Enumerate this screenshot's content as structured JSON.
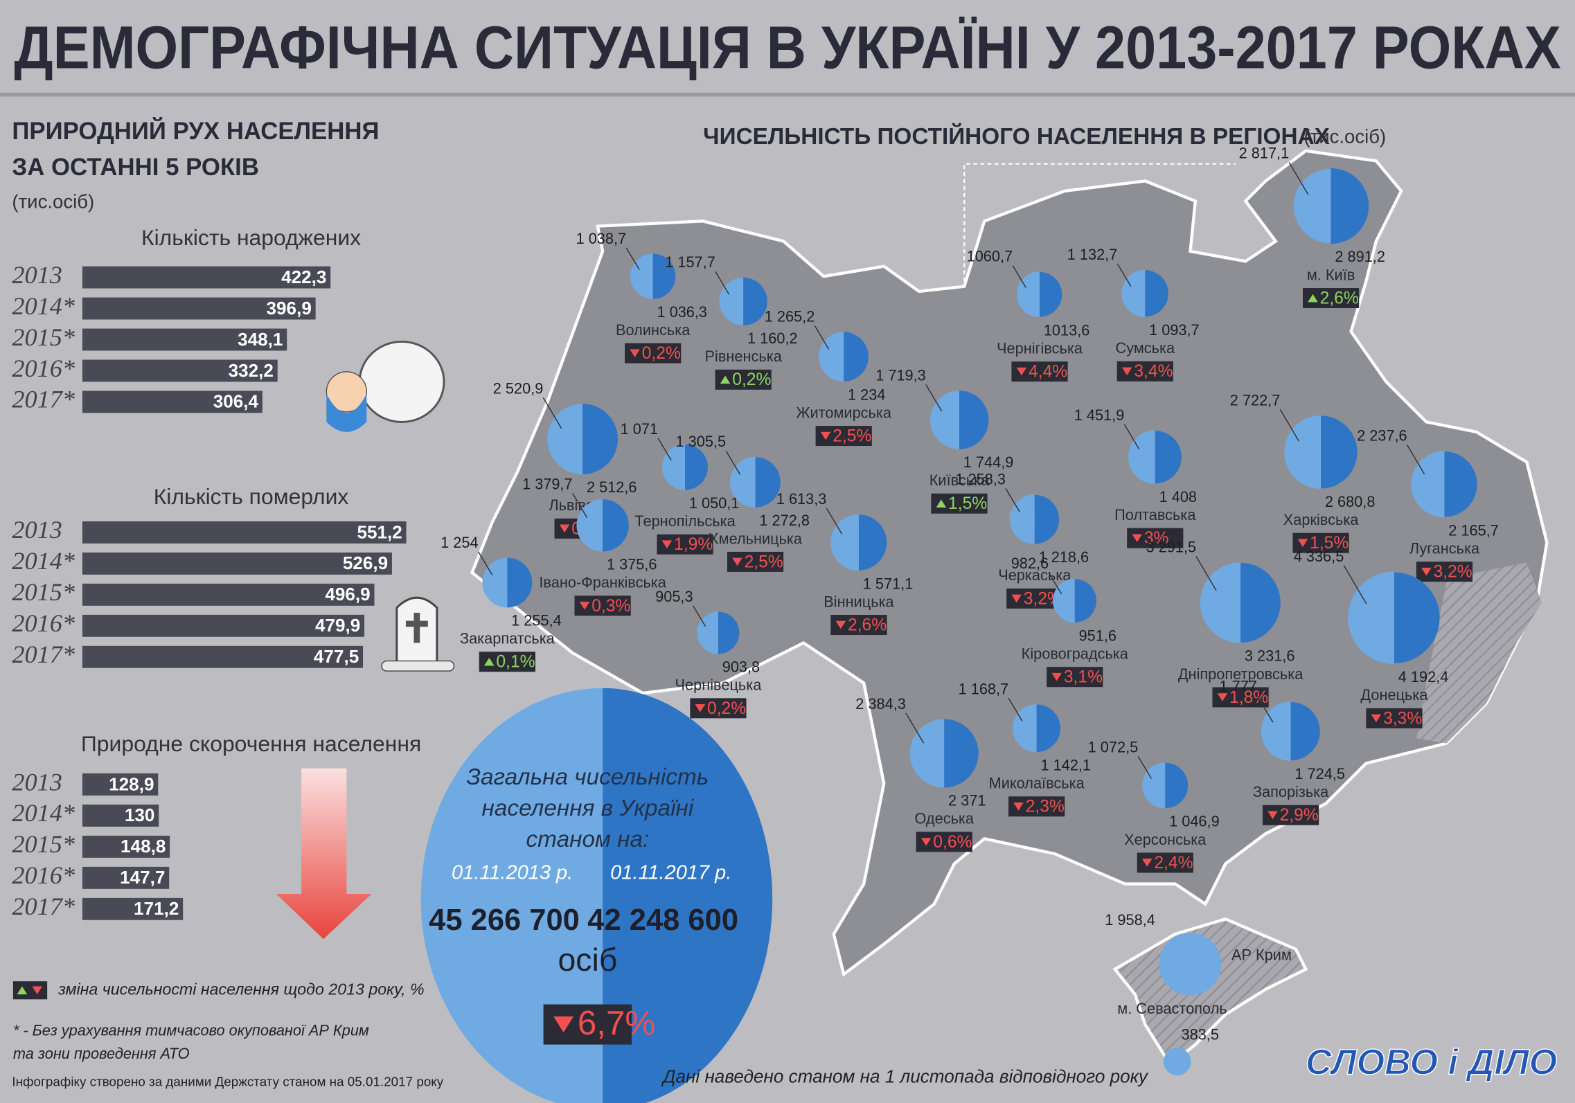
{
  "header": {
    "title": "ДЕМОГРАФІЧНА СИТУАЦІЯ В УКРАЇНІ У 2013-2017 РОКАХ"
  },
  "natural_movement": {
    "title_line1": "ПРИРОДНИЙ РУХ НАСЕЛЕННЯ",
    "title_line2": "ЗА ОСТАННІ 5 РОКІВ",
    "unit": "(тис.осіб)",
    "births": {
      "title": "Кількість народжених",
      "categories": [
        "2013",
        "2014*",
        "2015*",
        "2016*",
        "2017*"
      ],
      "values": [
        422.3,
        396.9,
        348.1,
        332.2,
        306.4
      ],
      "value_labels": [
        "422,3",
        "396,9",
        "348,1",
        "332,2",
        "306,4"
      ]
    },
    "deaths": {
      "title": "Кількість померлих",
      "categories": [
        "2013",
        "2014*",
        "2015*",
        "2016*",
        "2017*"
      ],
      "values": [
        551.2,
        526.9,
        496.9,
        479.9,
        477.5
      ],
      "value_labels": [
        "551,2",
        "526,9",
        "496,9",
        "479,9",
        "477,5"
      ]
    },
    "decrease": {
      "title": "Природне скорочення населення",
      "categories": [
        "2013",
        "2014*",
        "2015*",
        "2016*",
        "2017*"
      ],
      "values": [
        128.9,
        130,
        148.8,
        147.7,
        171.2
      ],
      "value_labels": [
        "128,9",
        "130",
        "148,8",
        "147,7",
        "171,2"
      ]
    }
  },
  "map": {
    "title": "ЧИСЕЛЬНІСТЬ ПОСТІЙНОГО НАСЕЛЕННЯ В РЕГІОНАХ",
    "unit": "(тис.осіб)",
    "regions": [
      {
        "name": "Волинська",
        "v2013": 1038.7,
        "v2013_label": "1 038,7",
        "v2017": 1036.3,
        "v2017_label": "1 036,3",
        "change": -0.2,
        "change_label": "0,2%"
      },
      {
        "name": "Рівненська",
        "v2013": 1157.7,
        "v2013_label": "1 157,7",
        "v2017": 1160.2,
        "v2017_label": "1 160,2",
        "change": 0.2,
        "change_label": "0,2%"
      },
      {
        "name": "Житомирська",
        "v2013": 1265.2,
        "v2013_label": "1 265,2",
        "v2017": 1234,
        "v2017_label": "1 234",
        "change": -2.5,
        "change_label": "2,5%"
      },
      {
        "name": "Київська",
        "v2013": 1719.3,
        "v2013_label": "1 719,3",
        "v2017": 1744.9,
        "v2017_label": "1 744,9",
        "change": 1.5,
        "change_label": "1,5%"
      },
      {
        "name": "Чернігівська",
        "v2013": 1060.7,
        "v2013_label": "1060,7",
        "v2017": 1013.6,
        "v2017_label": "1013,6",
        "change": -4.4,
        "change_label": "4,4%"
      },
      {
        "name": "Сумська",
        "v2013": 1132.7,
        "v2013_label": "1 132,7",
        "v2017": 1093.7,
        "v2017_label": "1 093,7",
        "change": -3.4,
        "change_label": "3,4%"
      },
      {
        "name": "м. Київ",
        "v2013": 2817.1,
        "v2013_label": "2 817,1",
        "v2017": 2891.2,
        "v2017_label": "2 891,2",
        "change": 2.6,
        "change_label": "2,6%"
      },
      {
        "name": "Львівська",
        "v2013": 2520.9,
        "v2013_label": "2 520,9",
        "v2017": 2512.6,
        "v2017_label": "2 512,6",
        "change": -0.3,
        "change_label": "0,3%"
      },
      {
        "name": "Тернопільська",
        "v2013": 1071,
        "v2013_label": "1 071",
        "v2017": 1050.1,
        "v2017_label": "1 050,1",
        "change": -1.9,
        "change_label": "1,9%"
      },
      {
        "name": "Хмельницька",
        "v2013": 1305.5,
        "v2013_label": "1 305,5",
        "v2017": 1272.8,
        "v2017_label": "1 272,8",
        "change": -2.5,
        "change_label": "2,5%"
      },
      {
        "name": "Закарпатська",
        "v2013": 1254,
        "v2013_label": "1 254",
        "v2017": 1255.4,
        "v2017_label": "1 255,4",
        "change": 0.1,
        "change_label": "0,1%"
      },
      {
        "name": "Івано-Франківська",
        "v2013": 1379.7,
        "v2013_label": "1 379,7",
        "v2017": 1375.6,
        "v2017_label": "1 375,6",
        "change": -0.3,
        "change_label": "0,3%"
      },
      {
        "name": "Чернівецька",
        "v2013": 905.3,
        "v2013_label": "905,3",
        "v2017": 903.8,
        "v2017_label": "903,8",
        "change": -0.2,
        "change_label": "0,2%"
      },
      {
        "name": "Вінницька",
        "v2013": 1613.3,
        "v2013_label": "1 613,3",
        "v2017": 1571.1,
        "v2017_label": "1 571,1",
        "change": -2.6,
        "change_label": "2,6%"
      },
      {
        "name": "Черкаська",
        "v2013": 1258.3,
        "v2013_label": "1 258,3",
        "v2017": 1218.6,
        "v2017_label": "1 218,6",
        "change": -3.2,
        "change_label": "3,2%"
      },
      {
        "name": "Полтавська",
        "v2013": 1451.9,
        "v2013_label": "1 451,9",
        "v2017": 1408,
        "v2017_label": "1 408",
        "change": -3,
        "change_label": "3%"
      },
      {
        "name": "Харківська",
        "v2013": 2722.7,
        "v2013_label": "2 722,7",
        "v2017": 2680.8,
        "v2017_label": "2 680,8",
        "change": -1.5,
        "change_label": "1,5%"
      },
      {
        "name": "Луганська",
        "v2013": 2237.6,
        "v2013_label": "2 237,6",
        "v2017": 2165.7,
        "v2017_label": "2 165,7",
        "change": -3.2,
        "change_label": "3,2%"
      },
      {
        "name": "Кіровоградська",
        "v2013": 982.6,
        "v2013_label": "982,6",
        "v2017": 951.6,
        "v2017_label": "951,6",
        "change": -3.1,
        "change_label": "3,1%"
      },
      {
        "name": "Дніпропетровська",
        "v2013": 3291.5,
        "v2013_label": "3 291,5",
        "v2017": 3231.6,
        "v2017_label": "3 231,6",
        "change": -1.8,
        "change_label": "1,8%"
      },
      {
        "name": "Донецька",
        "v2013": 4336.5,
        "v2013_label": "4 336,5",
        "v2017": 4192.4,
        "v2017_label": "4 192,4",
        "change": -3.3,
        "change_label": "3,3%"
      },
      {
        "name": "Одеська",
        "v2013": 2384.3,
        "v2013_label": "2 384,3",
        "v2017": 2371,
        "v2017_label": "2 371",
        "change": -0.6,
        "change_label": "0,6%"
      },
      {
        "name": "Миколаївська",
        "v2013": 1168.7,
        "v2013_label": "1 168,7",
        "v2017": 1142.1,
        "v2017_label": "1 142,1",
        "change": -2.3,
        "change_label": "2,3%"
      },
      {
        "name": "Херсонська",
        "v2013": 1072.5,
        "v2013_label": "1 072,5",
        "v2017": 1046.9,
        "v2017_label": "1 046,9",
        "change": -2.4,
        "change_label": "2,4%"
      },
      {
        "name": "Запорізька",
        "v2013": 1777,
        "v2013_label": "1 777",
        "v2017": 1724.5,
        "v2017_label": "1 724,5",
        "change": -2.9,
        "change_label": "2,9%"
      },
      {
        "name": "АР Крим",
        "value": 1958.4,
        "value_label": "1 958,4"
      },
      {
        "name": "м. Севастополь",
        "value": 383.5,
        "value_label": "383,5"
      }
    ]
  },
  "total": {
    "title_line1": "Загальна чисельність",
    "title_line2": "населення в Україні",
    "title_line3": "станом на:",
    "date1": "01.11.2013 р.",
    "date2": "01.11.2017 р.",
    "v2013": 45266700,
    "v2013_label": "45 266 700",
    "v2017": 42248600,
    "v2017_label": "42 248 600",
    "unit": "осіб",
    "change": -6.7,
    "change_label": "6,7%"
  },
  "notes": {
    "legend": "зміна чисельності населення щодо 2013 року, %",
    "footnote_line1": "* - Без урахування тимчасово окупованої АР Крим",
    "footnote_line2": "та зони проведення АТО",
    "source": "Інфографіку створено за даними Держстату станом на 05.01.2017 року",
    "data_note": "Дані наведено станом на 1 листопада відповідного року",
    "logo": "СЛОВО і ДІЛО"
  }
}
